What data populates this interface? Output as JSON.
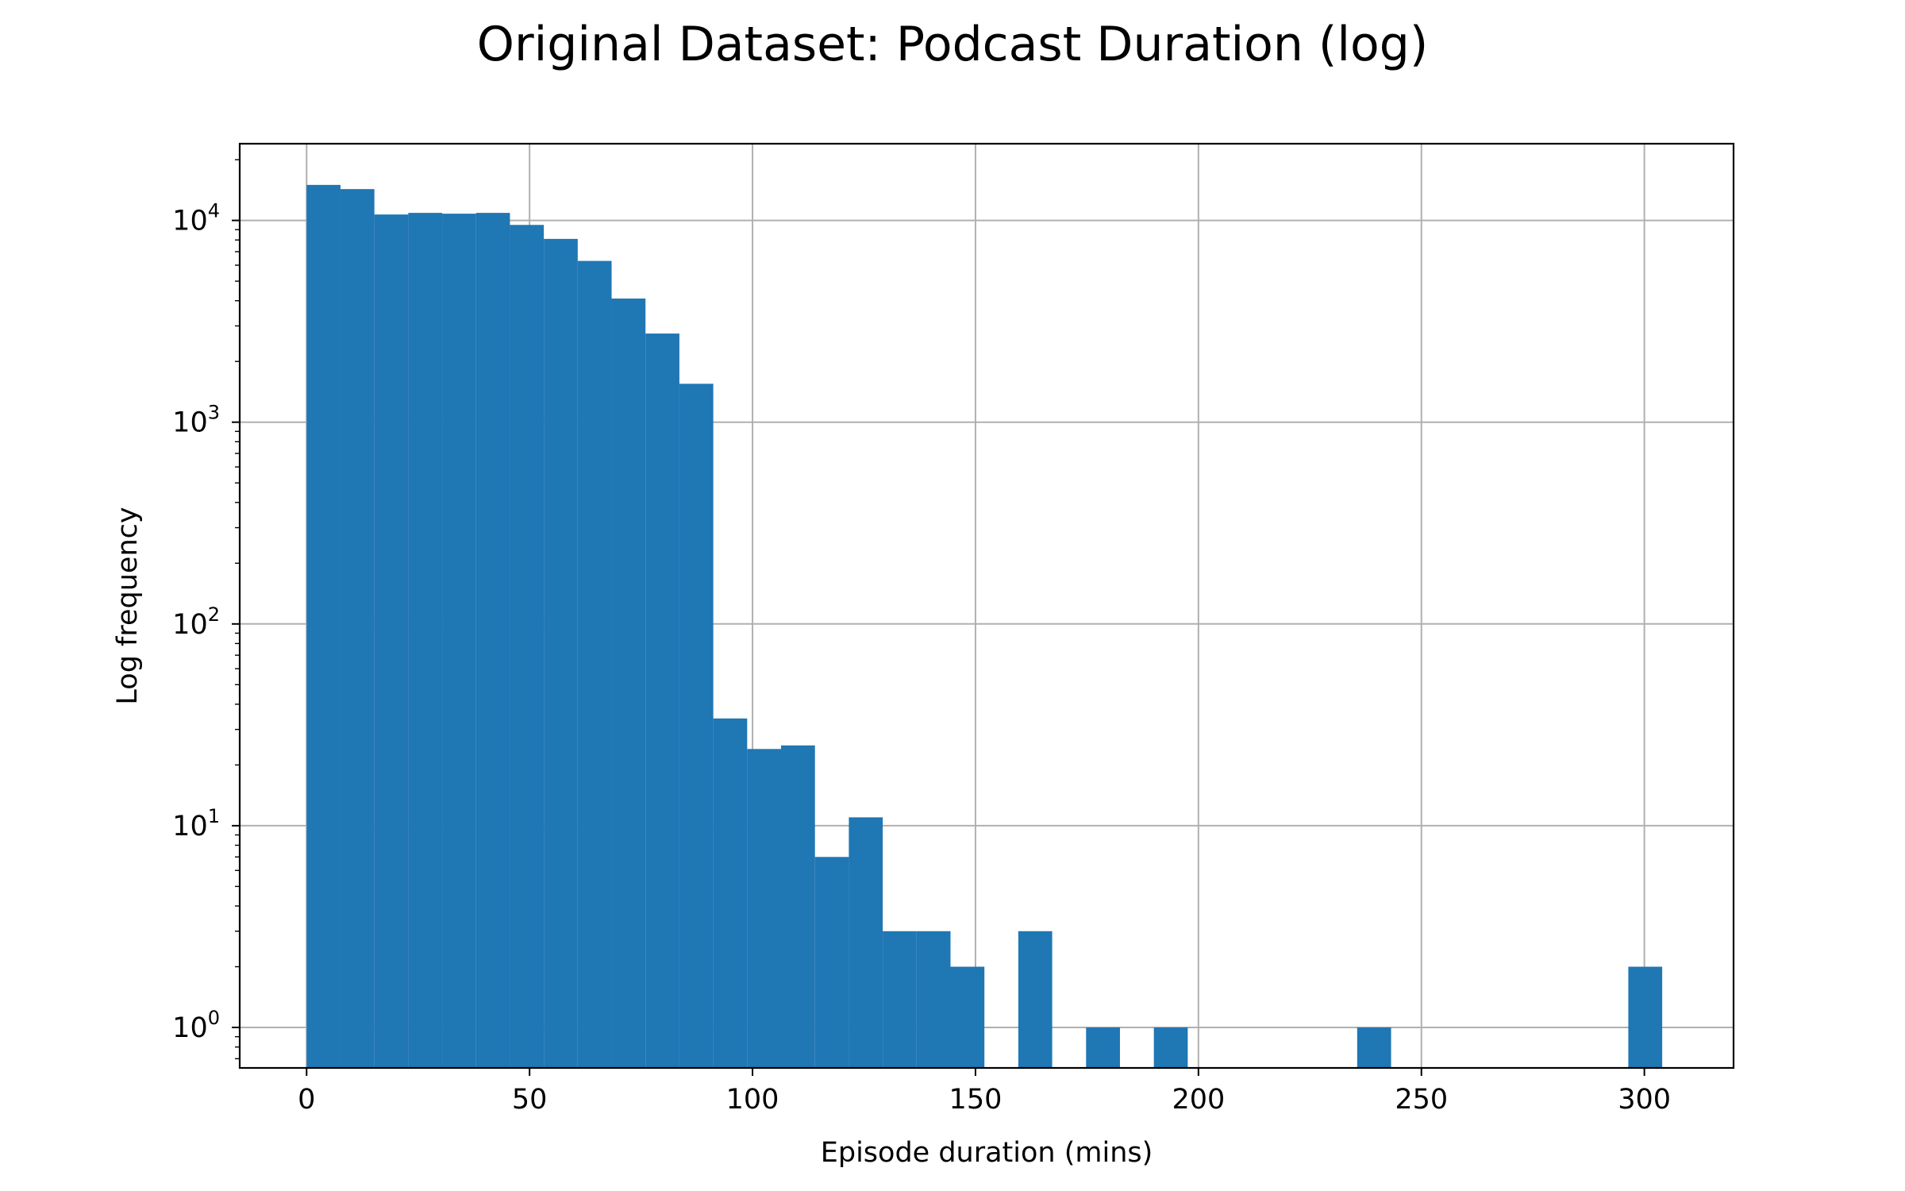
{
  "chart_data": {
    "type": "bar",
    "title": "Original Dataset: Podcast Duration (log)",
    "xlabel": "Episode duration (mins)",
    "ylabel": "Log frequency",
    "y_scale": "log",
    "grid": true,
    "xlim": [
      -15,
      320
    ],
    "ylim": [
      0.63,
      24000
    ],
    "x_ticks": [
      0,
      50,
      100,
      150,
      200,
      250,
      300
    ],
    "y_ticks": [
      {
        "value": 1,
        "base": "10",
        "exp": "0"
      },
      {
        "value": 10,
        "base": "10",
        "exp": "1"
      },
      {
        "value": 100,
        "base": "10",
        "exp": "2"
      },
      {
        "value": 1000,
        "base": "10",
        "exp": "3"
      },
      {
        "value": 10000,
        "base": "10",
        "exp": "4"
      }
    ],
    "bin_width": 7.6,
    "bins": [
      {
        "x0": 0.0,
        "count": 15000
      },
      {
        "x0": 7.6,
        "count": 14300
      },
      {
        "x0": 15.2,
        "count": 10700
      },
      {
        "x0": 22.8,
        "count": 10900
      },
      {
        "x0": 30.4,
        "count": 10800
      },
      {
        "x0": 38.0,
        "count": 10900
      },
      {
        "x0": 45.6,
        "count": 9500
      },
      {
        "x0": 53.2,
        "count": 8100
      },
      {
        "x0": 60.8,
        "count": 6300
      },
      {
        "x0": 68.4,
        "count": 4100
      },
      {
        "x0": 76.0,
        "count": 2750
      },
      {
        "x0": 83.6,
        "count": 1550
      },
      {
        "x0": 91.2,
        "count": 34
      },
      {
        "x0": 98.8,
        "count": 24
      },
      {
        "x0": 106.4,
        "count": 25
      },
      {
        "x0": 114.0,
        "count": 7
      },
      {
        "x0": 121.6,
        "count": 11
      },
      {
        "x0": 129.2,
        "count": 3
      },
      {
        "x0": 136.8,
        "count": 3
      },
      {
        "x0": 144.4,
        "count": 2
      },
      {
        "x0": 159.6,
        "count": 3
      },
      {
        "x0": 174.8,
        "count": 1
      },
      {
        "x0": 190.0,
        "count": 1
      },
      {
        "x0": 235.6,
        "count": 1
      },
      {
        "x0": 296.4,
        "count": 2
      }
    ],
    "bar_color": "#1f77b4",
    "grid_color": "#b0b0b0"
  }
}
